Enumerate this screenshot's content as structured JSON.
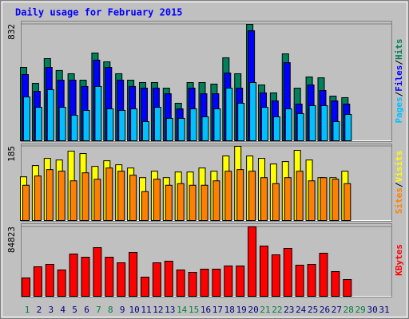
{
  "title": "Daily usage for February 2015",
  "categories": [
    "1",
    "2",
    "3",
    "4",
    "5",
    "6",
    "7",
    "8",
    "9",
    "10",
    "11",
    "12",
    "13",
    "14",
    "15",
    "16",
    "17",
    "18",
    "19",
    "20",
    "21",
    "22",
    "23",
    "24",
    "25",
    "26",
    "27",
    "28",
    "29",
    "30",
    "31"
  ],
  "category_colors": [
    "#008040",
    "#000080",
    "#000080",
    "#000080",
    "#000080",
    "#000080",
    "#008040",
    "#008040",
    "#000080",
    "#000080",
    "#000080",
    "#000080",
    "#000080",
    "#008040",
    "#008040",
    "#000080",
    "#000080",
    "#000080",
    "#000080",
    "#000080",
    "#008040",
    "#008040",
    "#000080",
    "#000080",
    "#000080",
    "#000080",
    "#000080",
    "#008040",
    "#008040",
    "#000080",
    "#000080"
  ],
  "legend_separator": "/",
  "chart_data": [
    {
      "type": "bar",
      "ylim": [
        0,
        832
      ],
      "yticks": [
        832
      ],
      "series": [
        {
          "name": "Hits",
          "color": "#00805c",
          "values": [
            524,
            410,
            587,
            502,
            479,
            433,
            627,
            564,
            479,
            433,
            416,
            416,
            376,
            268,
            416,
            416,
            405,
            593,
            479,
            832,
            399,
            342,
            621,
            376,
            456,
            450,
            319,
            308,
            null,
            null,
            null
          ]
        },
        {
          "name": "Files",
          "color": "#0000ff",
          "values": [
            473,
            353,
            524,
            433,
            433,
            388,
            576,
            524,
            433,
            388,
            376,
            376,
            336,
            228,
            376,
            336,
            336,
            484,
            376,
            786,
            342,
            285,
            558,
            262,
            399,
            359,
            285,
            262,
            null,
            null,
            null
          ]
        },
        {
          "name": "Pages",
          "color": "#00c0ff",
          "values": [
            313,
            239,
            365,
            239,
            182,
            217,
            388,
            228,
            217,
            228,
            137,
            239,
            160,
            160,
            228,
            171,
            228,
            376,
            268,
            416,
            239,
            171,
            228,
            194,
            251,
            251,
            137,
            188,
            null,
            null,
            null
          ]
        }
      ]
    },
    {
      "type": "bar",
      "ylim": [
        0,
        185
      ],
      "yticks": [
        185
      ],
      "series": [
        {
          "name": "Visits",
          "color": "#ffff00",
          "values": [
            109,
            137,
            155,
            151,
            173,
            167,
            135,
            149,
            139,
            131,
            107,
            123,
            107,
            121,
            121,
            131,
            123,
            161,
            185,
            161,
            155,
            141,
            147,
            175,
            151,
            107,
            107,
            123,
            null,
            null,
            null
          ]
        },
        {
          "name": "Sites",
          "color": "#ff8000",
          "values": [
            88,
            111,
            127,
            123,
            99,
            119,
            103,
            131,
            123,
            113,
            72,
            103,
            88,
            92,
            88,
            88,
            99,
            123,
            127,
            123,
            107,
            92,
            107,
            123,
            99,
            107,
            103,
            92,
            null,
            null,
            null
          ]
        }
      ]
    },
    {
      "type": "bar",
      "ylim": [
        0,
        84823
      ],
      "yticks": [
        84823
      ],
      "series": [
        {
          "name": "KBytes",
          "color": "#ff0000",
          "values": [
            22425,
            36075,
            39000,
            32175,
            51675,
            47775,
            59475,
            47775,
            40950,
            53625,
            23400,
            40950,
            42900,
            32175,
            29250,
            33150,
            33150,
            37050,
            37050,
            84823,
            61425,
            50700,
            58500,
            38025,
            39000,
            52650,
            30225,
            20475,
            null,
            null,
            null
          ]
        }
      ]
    }
  ]
}
